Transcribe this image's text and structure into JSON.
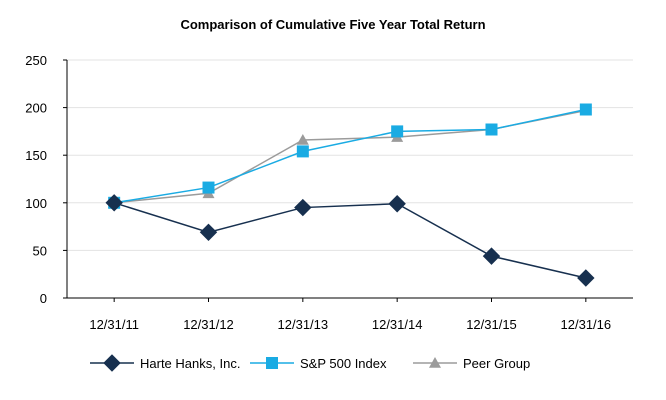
{
  "chart_data": {
    "type": "line",
    "title": "Comparison of Cumulative Five Year Total Return",
    "xlabel": "",
    "ylabel": "",
    "categories": [
      "12/31/11",
      "12/31/12",
      "12/31/13",
      "12/31/14",
      "12/31/15",
      "12/31/16"
    ],
    "ylim": [
      0,
      250
    ],
    "yticks": [
      0,
      50,
      100,
      150,
      200,
      250
    ],
    "grid": true,
    "legend_position": "bottom",
    "series": [
      {
        "name": "Harte Hanks, Inc.",
        "values": [
          100,
          69,
          95,
          99,
          44,
          21
        ],
        "color": "#17304f",
        "marker": "diamond"
      },
      {
        "name": "S&P 500 Index",
        "values": [
          100,
          116,
          154,
          175,
          177,
          198
        ],
        "color": "#1aabe3",
        "marker": "square"
      },
      {
        "name": "Peer Group",
        "values": [
          100,
          110,
          166,
          169,
          177,
          197
        ],
        "color": "#9b9b9b",
        "marker": "triangle"
      }
    ]
  }
}
